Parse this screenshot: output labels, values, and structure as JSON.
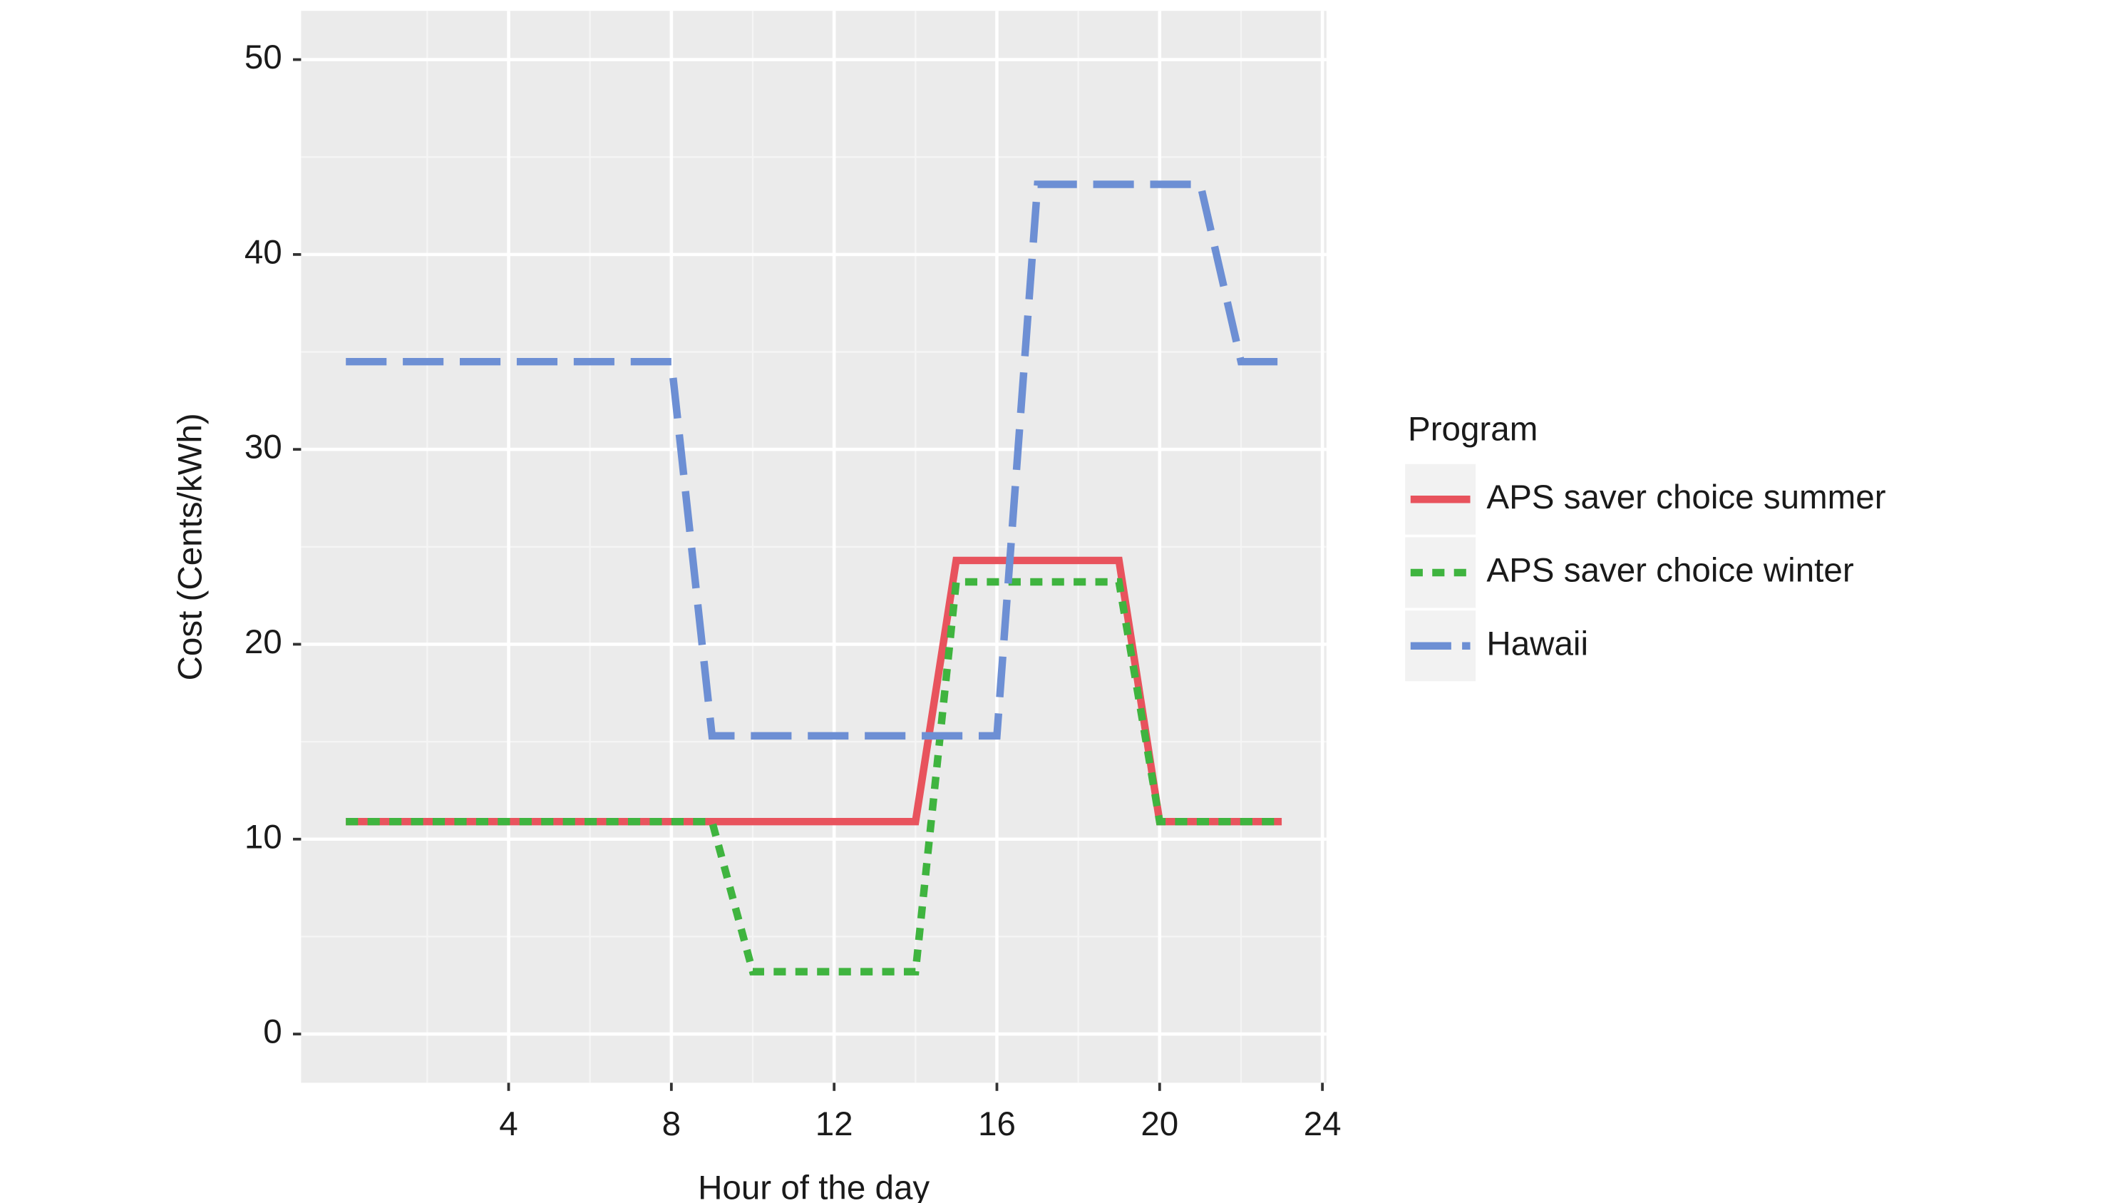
{
  "chart_data": {
    "type": "line",
    "x_label": "Hour of the day",
    "y_label": "Cost (Cents/kWh)",
    "x": [
      0,
      1,
      2,
      3,
      4,
      5,
      6,
      7,
      8,
      9,
      10,
      11,
      12,
      13,
      14,
      15,
      16,
      17,
      18,
      19,
      20,
      21,
      22,
      23
    ],
    "series": [
      {
        "name": "APS saver choice summer",
        "color": "#e8535d",
        "linetype": "solid",
        "values": [
          10.9,
          10.9,
          10.9,
          10.9,
          10.9,
          10.9,
          10.9,
          10.9,
          10.9,
          10.9,
          10.9,
          10.9,
          10.9,
          10.9,
          10.9,
          24.3,
          24.3,
          24.3,
          24.3,
          24.3,
          10.9,
          10.9,
          10.9,
          10.9
        ]
      },
      {
        "name": "APS saver choice winter",
        "color": "#3fb43f",
        "linetype": "dotted",
        "values": [
          10.9,
          10.9,
          10.9,
          10.9,
          10.9,
          10.9,
          10.9,
          10.9,
          10.9,
          10.9,
          3.2,
          3.2,
          3.2,
          3.2,
          3.2,
          23.2,
          23.2,
          23.2,
          23.2,
          23.2,
          10.9,
          10.9,
          10.9,
          10.9
        ]
      },
      {
        "name": "Hawaii",
        "color": "#6d8fd4",
        "linetype": "dashed",
        "values": [
          34.5,
          34.5,
          34.5,
          34.5,
          34.5,
          34.5,
          34.5,
          34.5,
          34.5,
          15.3,
          15.3,
          15.3,
          15.3,
          15.3,
          15.3,
          15.3,
          15.3,
          43.6,
          43.6,
          43.6,
          43.6,
          43.6,
          34.5,
          34.5
        ]
      }
    ],
    "legend_title": "Program",
    "legend_position": "right",
    "xlim": [
      -1.1,
      24.1
    ],
    "xticks": [
      4,
      8,
      12,
      16,
      20,
      24
    ],
    "ylim": [
      -2.5,
      52.5
    ],
    "yticks": [
      0,
      10,
      20,
      30,
      40,
      50
    ],
    "grid": true
  }
}
